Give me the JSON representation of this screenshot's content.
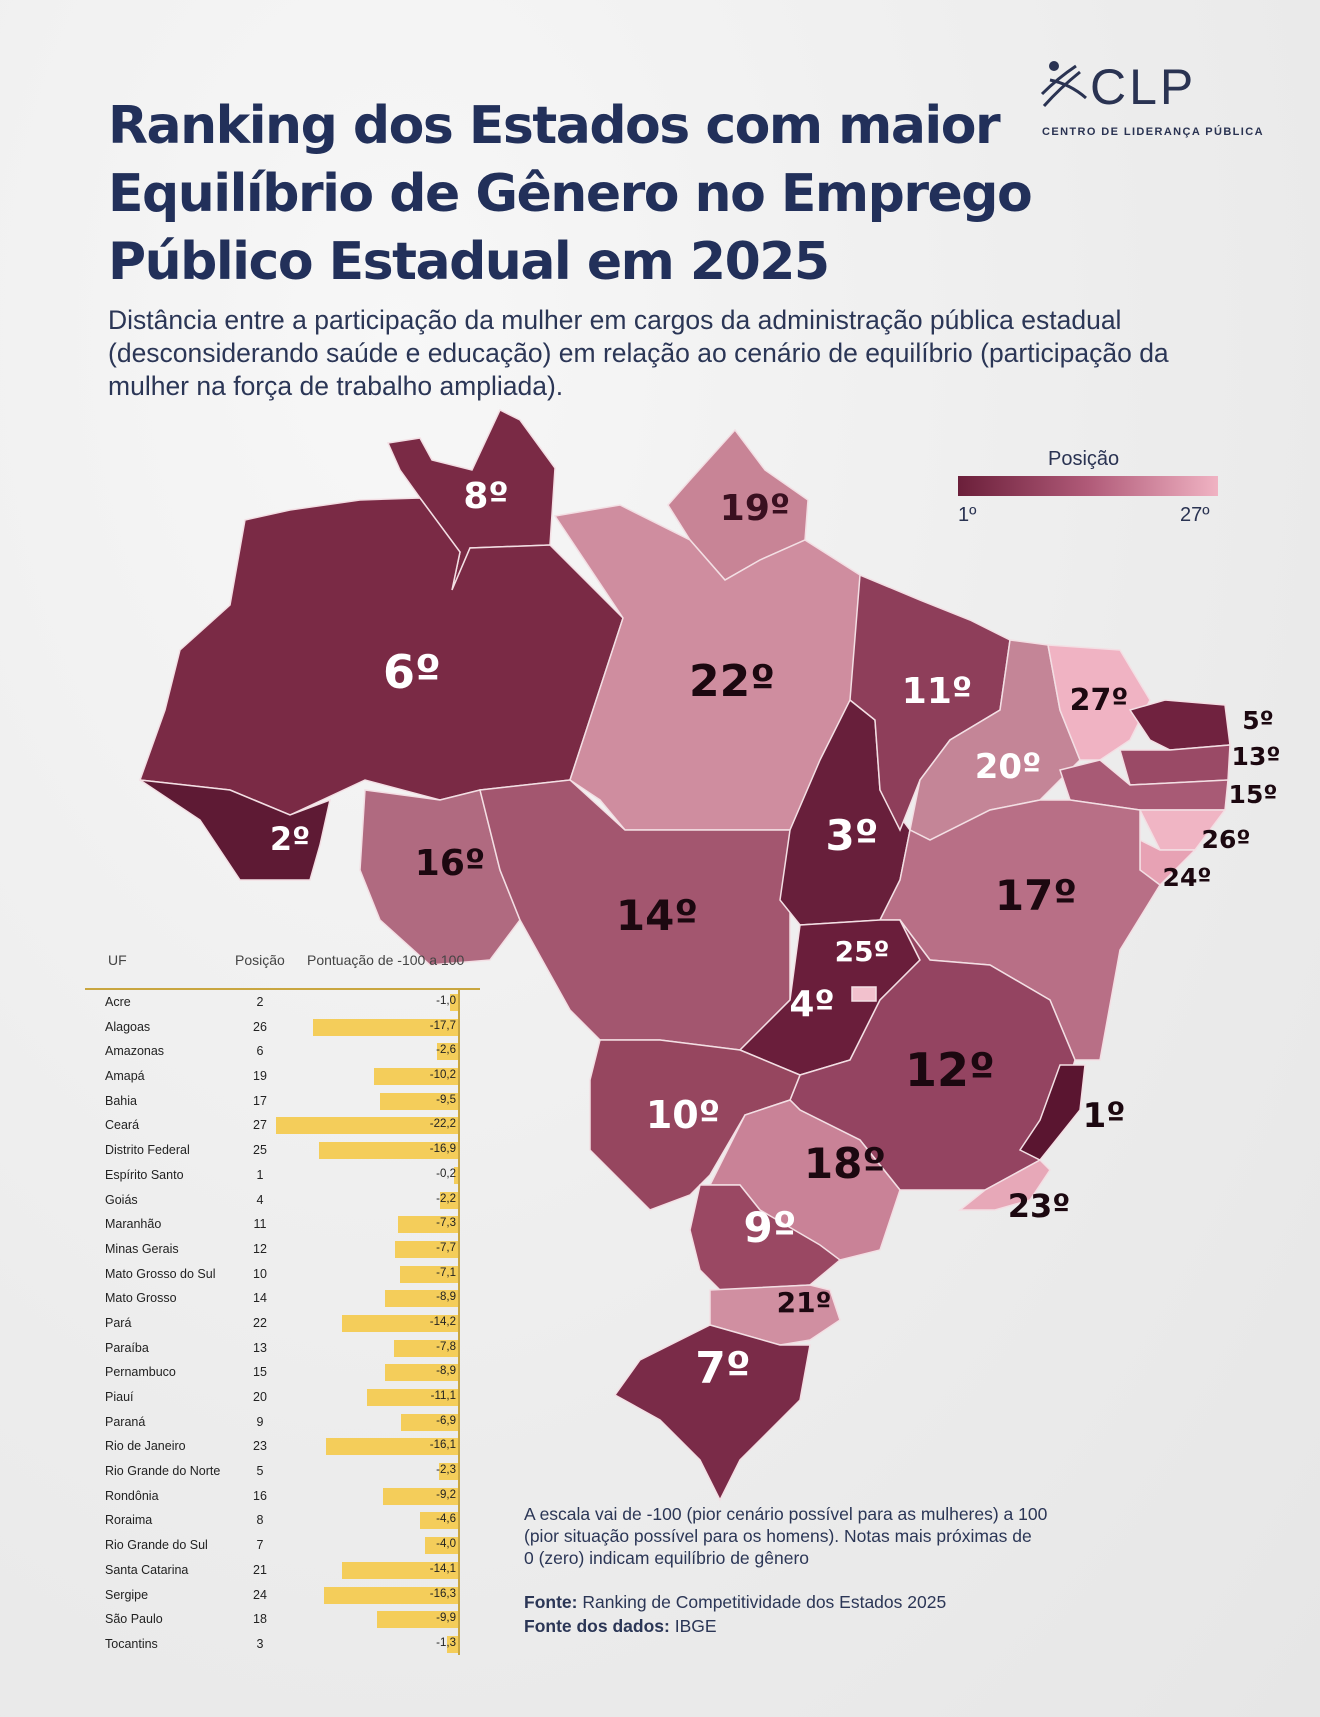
{
  "header": {
    "title_lines": [
      "Ranking dos Estados com maior",
      "Equilíbrio de Gênero no Emprego",
      "Público Estadual em 2025"
    ],
    "subtitle_lines": [
      "Distância entre a participação da mulher em cargos da administração pública estadual",
      "(desconsiderando saúde e educação) em relação ao cenário de equilíbrio (participação da",
      "mulher na força de trabalho ampliada)."
    ]
  },
  "logo": {
    "word": "CLP",
    "tagline": "CENTRO DE LIDERANÇA PÚBLICA"
  },
  "legend": {
    "title": "Posição",
    "min": "1º",
    "max": "27º",
    "colors": {
      "min": "#6b1f3a",
      "mid": "#b05a78",
      "max": "#f0b3c3"
    }
  },
  "map_labels": {
    "RR": "8º",
    "AP": "19º",
    "AM": "6º",
    "PA": "22º",
    "AC": "2º",
    "RO": "16º",
    "MT": "14º",
    "TO": "3º",
    "MA": "11º",
    "PI": "20º",
    "CE": "27º",
    "RN": "5º",
    "PB": "13º",
    "PE": "15º",
    "AL": "26º",
    "SE": "24º",
    "BA": "17º",
    "GO": "4º",
    "DF": "25º",
    "MG": "12º",
    "ES": "1º",
    "MS": "10º",
    "SP": "18º",
    "RJ": "23º",
    "PR": "9º",
    "SC": "21º",
    "RS": "7º"
  },
  "table": {
    "headers": {
      "uf": "UF",
      "pos": "Posição",
      "score": "Pontuação de -100 a 100"
    },
    "rows": [
      {
        "uf": "Acre",
        "pos": "2",
        "score": "-1,0"
      },
      {
        "uf": "Alagoas",
        "pos": "26",
        "score": "-17,7"
      },
      {
        "uf": "Amazonas",
        "pos": "6",
        "score": "-2,6"
      },
      {
        "uf": "Amapá",
        "pos": "19",
        "score": "-10,2"
      },
      {
        "uf": "Bahia",
        "pos": "17",
        "score": "-9,5"
      },
      {
        "uf": "Ceará",
        "pos": "27",
        "score": "-22,2"
      },
      {
        "uf": "Distrito Federal",
        "pos": "25",
        "score": "-16,9"
      },
      {
        "uf": "Espírito Santo",
        "pos": "1",
        "score": "-0,2"
      },
      {
        "uf": "Goiás",
        "pos": "4",
        "score": "-2,2"
      },
      {
        "uf": "Maranhão",
        "pos": "11",
        "score": "-7,3"
      },
      {
        "uf": "Minas Gerais",
        "pos": "12",
        "score": "-7,7"
      },
      {
        "uf": "Mato Grosso do Sul",
        "pos": "10",
        "score": "-7,1"
      },
      {
        "uf": "Mato Grosso",
        "pos": "14",
        "score": "-8,9"
      },
      {
        "uf": "Pará",
        "pos": "22",
        "score": "-14,2"
      },
      {
        "uf": "Paraíba",
        "pos": "13",
        "score": "-7,8"
      },
      {
        "uf": "Pernambuco",
        "pos": "15",
        "score": "-8,9"
      },
      {
        "uf": "Piauí",
        "pos": "20",
        "score": "-11,1"
      },
      {
        "uf": "Paraná",
        "pos": "9",
        "score": "-6,9"
      },
      {
        "uf": "Rio de Janeiro",
        "pos": "23",
        "score": "-16,1"
      },
      {
        "uf": "Rio Grande do Norte",
        "pos": "5",
        "score": "-2,3"
      },
      {
        "uf": "Rondônia",
        "pos": "16",
        "score": "-9,2"
      },
      {
        "uf": "Roraima",
        "pos": "8",
        "score": "-4,6"
      },
      {
        "uf": "Rio Grande do Sul",
        "pos": "7",
        "score": "-4,0"
      },
      {
        "uf": "Santa Catarina",
        "pos": "21",
        "score": "-14,1"
      },
      {
        "uf": "Sergipe",
        "pos": "24",
        "score": "-16,3"
      },
      {
        "uf": "São Paulo",
        "pos": "18",
        "score": "-9,9"
      },
      {
        "uf": "Tocantins",
        "pos": "3",
        "score": "-1,3"
      }
    ]
  },
  "chart_data": {
    "type": "bar",
    "categories": [
      "Acre",
      "Alagoas",
      "Amazonas",
      "Amapá",
      "Bahia",
      "Ceará",
      "Distrito Federal",
      "Espírito Santo",
      "Goiás",
      "Maranhão",
      "Minas Gerais",
      "Mato Grosso do Sul",
      "Mato Grosso",
      "Pará",
      "Paraíba",
      "Pernambuco",
      "Piauí",
      "Paraná",
      "Rio de Janeiro",
      "Rio Grande do Norte",
      "Rondônia",
      "Roraima",
      "Rio Grande do Sul",
      "Santa Catarina",
      "Sergipe",
      "São Paulo",
      "Tocantins"
    ],
    "values": [
      -1.0,
      -17.7,
      -2.6,
      -10.2,
      -9.5,
      -22.2,
      -16.9,
      -0.2,
      -2.2,
      -7.3,
      -7.7,
      -7.1,
      -8.9,
      -14.2,
      -7.8,
      -8.9,
      -11.1,
      -6.9,
      -16.1,
      -2.3,
      -9.2,
      -4.6,
      -4.0,
      -14.1,
      -16.3,
      -9.9,
      -1.3
    ],
    "xlabel": "",
    "ylabel": "Pontuação de -100 a 100",
    "bar_color": "#f4cd5a"
  },
  "note_lines": [
    "A escala vai de -100 (pior cenário possível para as mulheres) a 100",
    "(pior situação possível para os homens). Notas mais próximas de",
    "0 (zero) indicam equilíbrio de gênero"
  ],
  "sources": {
    "fonte_label": "Fonte:",
    "fonte": "Ranking de Competitividade dos Estados 2025",
    "dados_label": "Fonte dos dados:",
    "dados": "IBGE"
  }
}
